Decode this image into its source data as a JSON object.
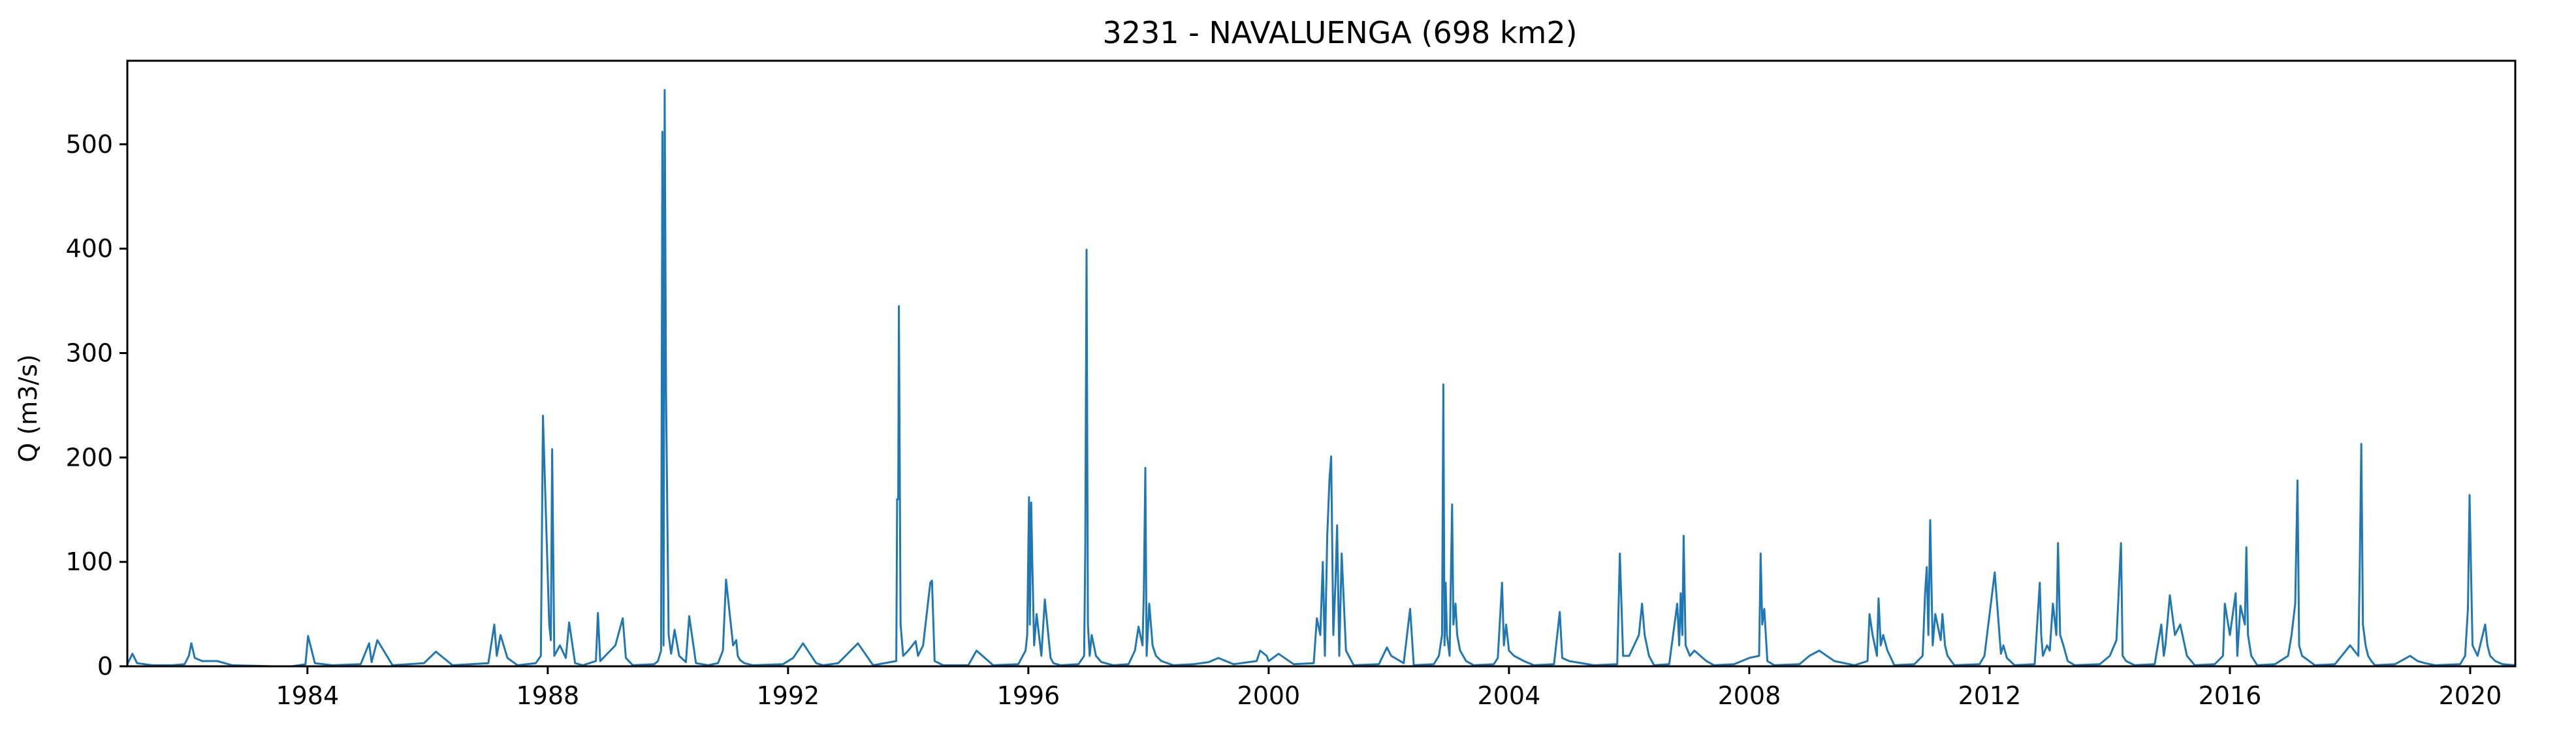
{
  "chart_data": {
    "type": "line",
    "title": "3231 - NAVALUENGA (698 km2)",
    "xlabel": "",
    "ylabel": "Q (m3/s)",
    "xlim": [
      "1981-01-01",
      "2020-10-01"
    ],
    "ylim": [
      0,
      580
    ],
    "x_ticks": [
      "1984",
      "1988",
      "1992",
      "1996",
      "2000",
      "2004",
      "2008",
      "2012",
      "2016",
      "2020"
    ],
    "y_ticks": [
      "0",
      "100",
      "200",
      "300",
      "400",
      "500"
    ],
    "grid": false,
    "color": "#1f77b4",
    "series": [
      {
        "x": [
          "1981-01-01",
          "1981-02-01",
          "1981-03-01",
          "1981-06-01",
          "1981-10-01",
          "1981-12-15",
          "1982-01-10",
          "1982-01-25",
          "1982-02-15",
          "1982-04-01",
          "1982-07-01",
          "1982-10-01",
          "1983-06-01",
          "1983-10-01",
          "1983-12-20",
          "1984-01-05",
          "1984-02-15",
          "1984-06-01",
          "1984-11-20",
          "1985-01-10",
          "1985-01-25",
          "1985-03-01",
          "1985-06-01",
          "1985-12-10",
          "1986-02-20",
          "1986-06-01",
          "1987-01-05",
          "1987-02-10",
          "1987-02-25",
          "1987-03-20",
          "1987-05-01",
          "1987-07-01",
          "1987-10-20",
          "1987-11-20",
          "1987-12-03",
          "1988-01-10",
          "1988-01-20",
          "1988-01-28",
          "1988-02-10",
          "1988-03-15",
          "1988-04-20",
          "1988-05-10",
          "1988-06-15",
          "1988-08-01",
          "1988-10-20",
          "1988-11-01",
          "1988-11-15",
          "1989-02-15",
          "1989-04-01",
          "1989-04-20",
          "1989-06-01",
          "1989-10-10",
          "1989-11-01",
          "1989-11-20",
          "1989-11-28",
          "1989-12-05",
          "1989-12-12",
          "1989-12-20",
          "1989-12-28",
          "1990-01-05",
          "1990-01-20",
          "1990-02-10",
          "1990-03-10",
          "1990-04-20",
          "1990-05-10",
          "1990-06-20",
          "1990-09-01",
          "1990-11-01",
          "1990-12-01",
          "1990-12-20",
          "1991-02-01",
          "1991-02-20",
          "1991-03-01",
          "1991-03-15",
          "1991-04-10",
          "1991-06-01",
          "1991-12-01",
          "1992-02-01",
          "1992-04-01",
          "1992-06-20",
          "1992-08-01",
          "1992-11-01",
          "1993-03-01",
          "1993-06-01",
          "1993-10-20",
          "1993-10-25",
          "1993-11-01",
          "1993-11-05",
          "1993-11-15",
          "1993-12-01",
          "1994-01-01",
          "1994-02-15",
          "1994-03-01",
          "1994-04-01",
          "1994-05-15",
          "1994-05-25",
          "1994-06-10",
          "1994-08-01",
          "1995-01-01",
          "1995-02-20",
          "1995-06-01",
          "1995-11-01",
          "1995-12-15",
          "1995-12-25",
          "1996-01-05",
          "1996-01-10",
          "1996-01-18",
          "1996-01-25",
          "1996-02-05",
          "1996-02-20",
          "1996-03-20",
          "1996-04-10",
          "1996-05-15",
          "1996-06-01",
          "1996-07-15",
          "1996-11-01",
          "1996-12-05",
          "1996-12-12",
          "1996-12-20",
          "1996-12-28",
          "1997-01-08",
          "1997-01-20",
          "1997-02-15",
          "1997-03-20",
          "1997-06-01",
          "1997-09-01",
          "1997-10-10",
          "1997-11-01",
          "1997-11-25",
          "1997-12-03",
          "1997-12-12",
          "1997-12-20",
          "1998-01-05",
          "1998-01-25",
          "1998-02-15",
          "1998-03-20",
          "1998-06-01",
          "1998-10-01",
          "1999-01-01",
          "1999-03-01",
          "1999-06-01",
          "1999-10-20",
          "1999-11-10",
          "1999-12-20",
          "2000-01-01",
          "2000-03-01",
          "2000-06-01",
          "2000-10-01",
          "2000-10-20",
          "2000-11-10",
          "2000-11-25",
          "2000-12-08",
          "2000-12-22",
          "2001-01-05",
          "2001-01-15",
          "2001-01-28",
          "2001-02-10",
          "2001-02-20",
          "2001-03-05",
          "2001-03-20",
          "2001-04-15",
          "2001-06-01",
          "2001-11-01",
          "2001-12-20",
          "2002-01-15",
          "2002-04-01",
          "2002-05-10",
          "2002-06-01",
          "2002-10-01",
          "2002-11-01",
          "2002-11-20",
          "2002-11-28",
          "2002-12-05",
          "2002-12-12",
          "2002-12-20",
          "2003-01-05",
          "2003-01-20",
          "2003-01-28",
          "2003-02-10",
          "2003-02-20",
          "2003-03-10",
          "2003-04-15",
          "2003-06-01",
          "2003-10-01",
          "2003-10-25",
          "2003-11-20",
          "2003-12-01",
          "2003-12-15",
          "2004-01-01",
          "2004-02-01",
          "2004-04-01",
          "2004-06-01",
          "2004-10-01",
          "2004-11-05",
          "2004-11-20",
          "2005-01-01",
          "2005-06-01",
          "2005-10-20",
          "2005-11-05",
          "2005-11-25",
          "2006-01-01",
          "2006-03-01",
          "2006-03-20",
          "2006-04-05",
          "2006-05-01",
          "2006-06-01",
          "2006-09-01",
          "2006-10-20",
          "2006-11-01",
          "2006-11-10",
          "2006-11-20",
          "2006-11-28",
          "2006-12-10",
          "2007-01-05",
          "2007-02-01",
          "2007-04-15",
          "2007-06-01",
          "2007-10-01",
          "2008-01-01",
          "2008-03-01",
          "2008-03-10",
          "2008-03-20",
          "2008-04-01",
          "2008-04-20",
          "2008-06-01",
          "2008-11-01",
          "2009-01-01",
          "2009-03-01",
          "2009-06-01",
          "2009-10-01",
          "2009-12-20",
          "2010-01-01",
          "2010-01-20",
          "2010-02-15",
          "2010-02-25",
          "2010-03-10",
          "2010-03-25",
          "2010-04-20",
          "2010-06-01",
          "2010-10-01",
          "2010-11-20",
          "2010-12-05",
          "2010-12-15",
          "2010-12-25",
          "2011-01-05",
          "2011-01-20",
          "2011-02-05",
          "2011-03-10",
          "2011-03-20",
          "2011-04-05",
          "2011-04-20",
          "2011-06-01",
          "2011-11-01",
          "2011-12-01",
          "2012-02-01",
          "2012-03-10",
          "2012-03-25",
          "2012-04-15",
          "2012-05-05",
          "2012-06-01",
          "2012-10-01",
          "2012-11-01",
          "2012-11-10",
          "2012-11-20",
          "2012-12-15",
          "2013-01-01",
          "2013-01-20",
          "2013-02-10",
          "2013-02-20",
          "2013-03-05",
          "2013-03-25",
          "2013-04-20",
          "2013-06-01",
          "2013-11-01",
          "2014-01-01",
          "2014-02-10",
          "2014-03-10",
          "2014-03-20",
          "2014-04-10",
          "2014-06-01",
          "2014-10-01",
          "2014-11-10",
          "2014-11-25",
          "2014-12-05",
          "2015-01-01",
          "2015-02-01",
          "2015-03-05",
          "2015-04-15",
          "2015-06-01",
          "2015-10-01",
          "2015-11-20",
          "2015-12-01",
          "2016-01-01",
          "2016-02-05",
          "2016-02-15",
          "2016-03-05",
          "2016-04-01",
          "2016-04-10",
          "2016-04-20",
          "2016-05-10",
          "2016-06-15",
          "2016-10-01",
          "2016-12-20",
          "2017-01-10",
          "2017-02-01",
          "2017-02-15",
          "2017-02-25",
          "2017-03-15",
          "2017-06-01",
          "2017-10-01",
          "2018-01-01",
          "2018-02-20",
          "2018-03-01",
          "2018-03-10",
          "2018-03-20",
          "2018-04-05",
          "2018-04-20",
          "2018-05-10",
          "2018-06-01",
          "2018-10-01",
          "2019-01-01",
          "2019-02-15",
          "2019-04-01",
          "2019-06-01",
          "2019-11-01",
          "2019-12-01",
          "2019-12-18",
          "2019-12-28",
          "2020-01-15",
          "2020-02-15",
          "2020-04-01",
          "2020-04-15",
          "2020-05-01",
          "2020-06-01",
          "2020-07-15",
          "2020-10-01"
        ],
        "y": [
          2,
          12,
          3,
          1,
          1,
          2,
          10,
          22,
          8,
          5,
          5,
          1,
          0,
          0,
          2,
          29,
          3,
          1,
          2,
          22,
          4,
          25,
          1,
          3,
          14,
          1,
          3,
          40,
          10,
          30,
          8,
          1,
          3,
          10,
          240,
          40,
          25,
          208,
          10,
          20,
          8,
          42,
          3,
          1,
          5,
          51,
          5,
          20,
          46,
          8,
          1,
          2,
          5,
          15,
          512,
          20,
          552,
          262,
          143,
          30,
          12,
          35,
          10,
          4,
          48,
          3,
          1,
          3,
          15,
          83,
          20,
          25,
          10,
          6,
          3,
          1,
          2,
          8,
          22,
          3,
          1,
          3,
          22,
          1,
          5,
          160,
          160,
          345,
          40,
          10,
          15,
          24,
          10,
          20,
          80,
          82,
          5,
          1,
          1,
          15,
          1,
          2,
          15,
          30,
          162,
          40,
          157,
          100,
          20,
          50,
          10,
          64,
          8,
          3,
          1,
          2,
          10,
          110,
          399,
          40,
          10,
          30,
          10,
          4,
          1,
          2,
          15,
          38,
          20,
          70,
          190,
          10,
          60,
          20,
          10,
          5,
          1,
          2,
          4,
          8,
          2,
          5,
          15,
          10,
          5,
          12,
          2,
          3,
          46,
          30,
          100,
          10,
          125,
          180,
          201,
          30,
          80,
          135,
          10,
          108,
          15,
          1,
          2,
          18,
          10,
          3,
          55,
          1,
          2,
          10,
          30,
          270,
          20,
          80,
          30,
          10,
          155,
          40,
          60,
          30,
          15,
          5,
          1,
          2,
          8,
          80,
          20,
          40,
          15,
          10,
          5,
          1,
          2,
          52,
          8,
          5,
          1,
          2,
          108,
          10,
          10,
          30,
          60,
          30,
          10,
          1,
          2,
          60,
          20,
          70,
          30,
          125,
          20,
          10,
          15,
          5,
          1,
          2,
          8,
          10,
          108,
          40,
          55,
          5,
          1,
          2,
          10,
          15,
          5,
          1,
          5,
          50,
          30,
          10,
          65,
          20,
          30,
          15,
          1,
          2,
          10,
          70,
          95,
          30,
          140,
          20,
          50,
          25,
          50,
          20,
          10,
          1,
          2,
          10,
          90,
          12,
          20,
          8,
          5,
          1,
          2,
          80,
          30,
          10,
          20,
          15,
          60,
          30,
          118,
          30,
          20,
          5,
          1,
          2,
          10,
          25,
          118,
          10,
          5,
          1,
          2,
          40,
          10,
          20,
          68,
          30,
          40,
          10,
          1,
          2,
          10,
          60,
          30,
          70,
          10,
          58,
          40,
          114,
          30,
          10,
          1,
          2,
          10,
          30,
          60,
          178,
          20,
          10,
          1,
          2,
          20,
          10,
          103,
          213,
          40,
          20,
          10,
          5,
          1,
          2,
          10,
          5,
          3,
          1,
          2,
          10,
          55,
          164,
          20,
          10,
          40,
          20,
          10,
          5,
          2,
          1
        ]
      }
    ]
  }
}
